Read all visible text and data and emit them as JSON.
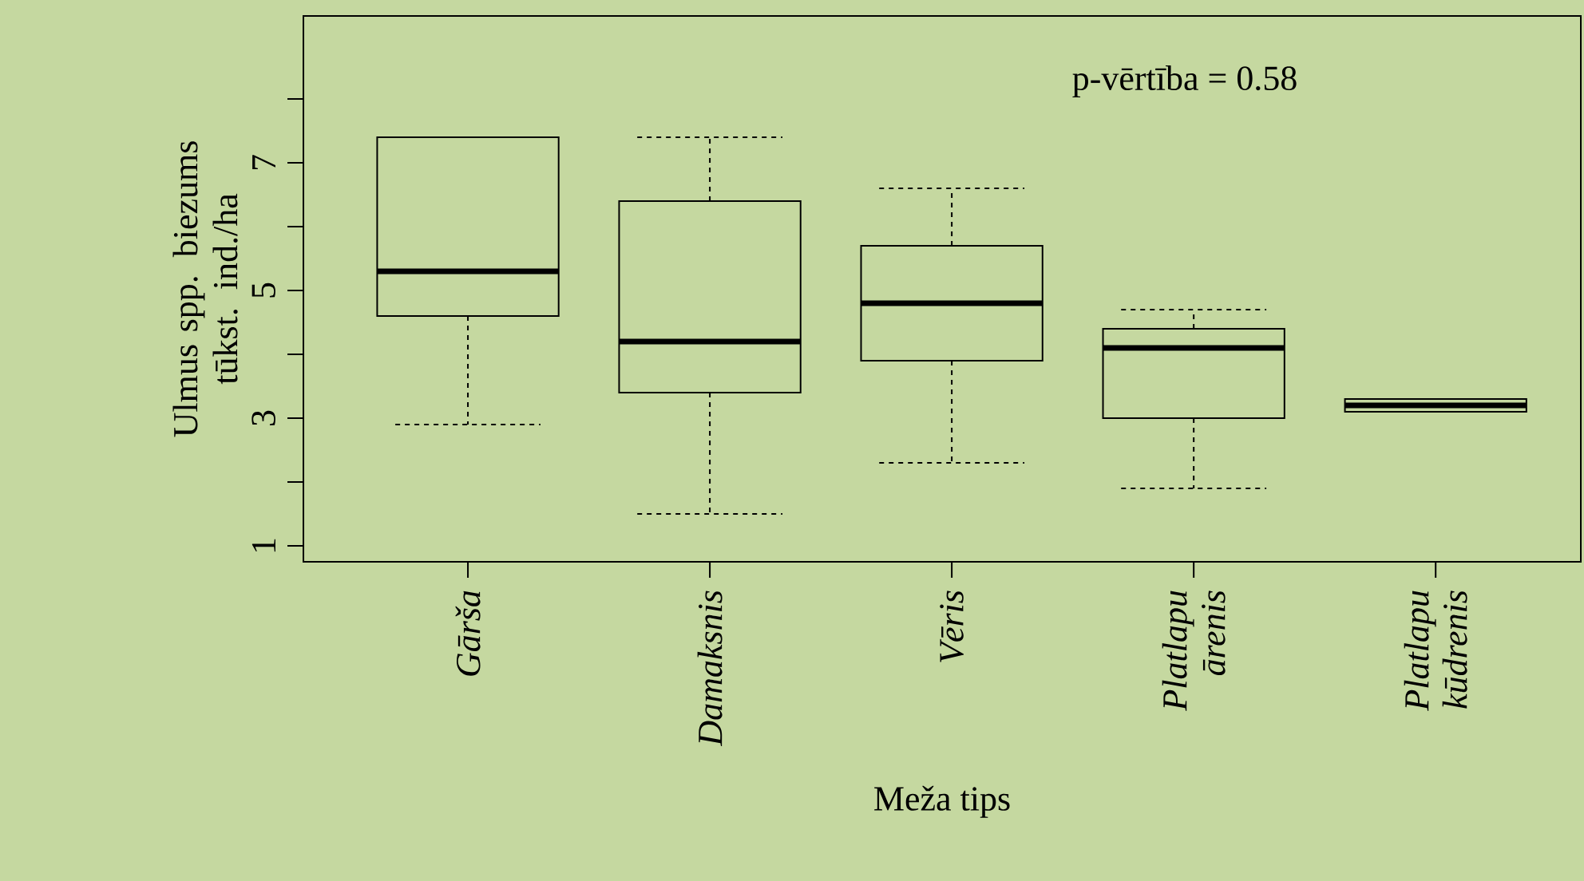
{
  "chart_data": {
    "type": "box",
    "xlabel": "Meža tips",
    "ylabel": "Ulmus spp. biezums tūkst. ind./ha",
    "categories": [
      "Gārša",
      "Damaksnis",
      "Vēris",
      "Platlapu ārenis",
      "Platlapu kūdrenis"
    ],
    "boxes": [
      {
        "low": 2.9,
        "q1": 4.6,
        "median": 5.3,
        "q3": 7.4,
        "high": 7.4
      },
      {
        "low": 1.5,
        "q1": 3.4,
        "median": 4.2,
        "q3": 6.4,
        "high": 7.4
      },
      {
        "low": 2.3,
        "q1": 3.9,
        "median": 4.8,
        "q3": 5.7,
        "high": 6.6
      },
      {
        "low": 1.9,
        "q1": 3.0,
        "median": 4.1,
        "q3": 4.4,
        "high": 4.7
      },
      {
        "low": 3.1,
        "q1": 3.1,
        "median": 3.2,
        "q3": 3.3,
        "high": 3.3
      }
    ],
    "ylim": [
      0.75,
      9.3
    ],
    "yticks": [
      1,
      {
        "value": 2,
        "label": null
      },
      3,
      {
        "value": 4,
        "label": null
      },
      5,
      {
        "value": 6,
        "label": null
      },
      7,
      {
        "value": 8,
        "label": null
      }
    ],
    "annotations": [
      "p-vērtība = 0.58"
    ]
  }
}
